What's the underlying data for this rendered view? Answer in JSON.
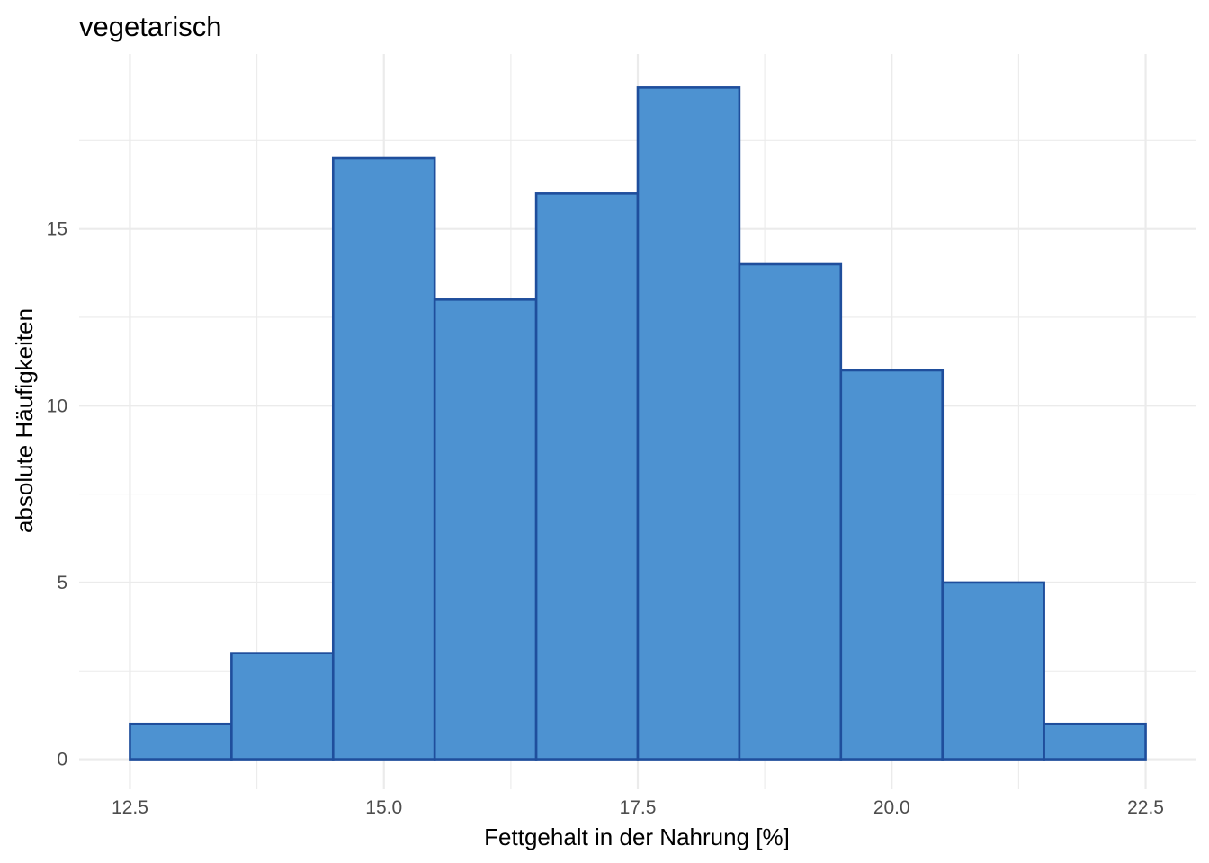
{
  "chart_data": {
    "type": "bar",
    "title": "vegetarisch",
    "xlabel": "Fettgehalt in der Nahrung [%]",
    "ylabel": "absolute Häufigkeiten",
    "bin_edges": [
      12.5,
      13.5,
      14.5,
      15.5,
      16.5,
      17.5,
      18.5,
      19.5,
      20.5,
      21.5,
      22.5
    ],
    "values": [
      1,
      3,
      17,
      13,
      16,
      19,
      14,
      11,
      5,
      1
    ],
    "xticks": [
      "12.5",
      "15.0",
      "17.5",
      "20.0",
      "22.5"
    ],
    "yticks": [
      "0",
      "5",
      "10",
      "15"
    ],
    "xlim": [
      12.0,
      23.0
    ],
    "ylim": [
      -0.85,
      19.95
    ],
    "grid": true,
    "colors": {
      "fill": "#4d92d1",
      "stroke": "#1f4e9c"
    }
  }
}
